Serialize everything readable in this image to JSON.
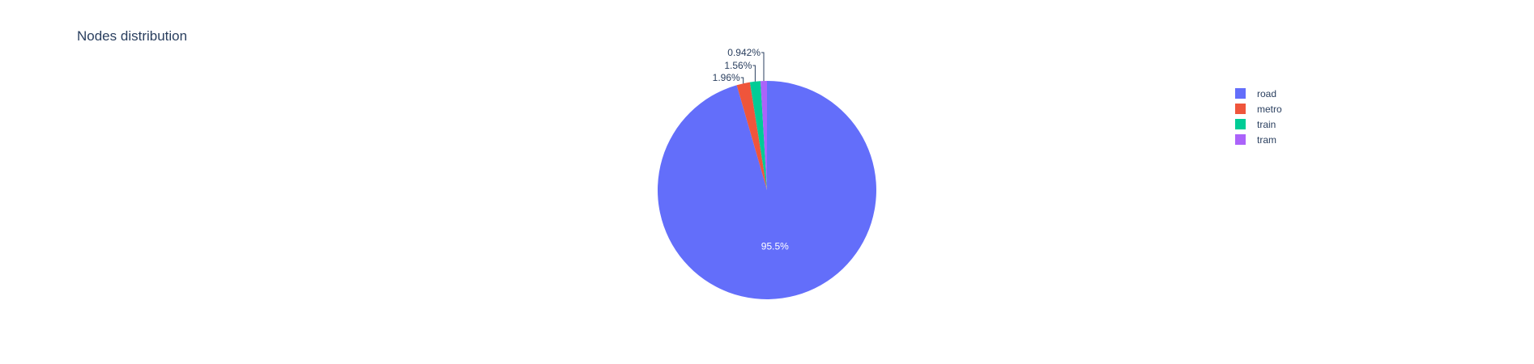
{
  "chart_data": {
    "type": "pie",
    "title": "Nodes distribution",
    "labels": [
      "road",
      "metro",
      "train",
      "tram"
    ],
    "values": [
      95.5,
      1.96,
      1.56,
      0.942
    ],
    "text_labels": [
      "95.5%",
      "1.96%",
      "1.56%",
      "0.942%"
    ],
    "colors": [
      "#636efa",
      "#ef553b",
      "#00cc96",
      "#ab63fa"
    ],
    "direction": "clockwise",
    "legend": {
      "position": "right"
    }
  }
}
